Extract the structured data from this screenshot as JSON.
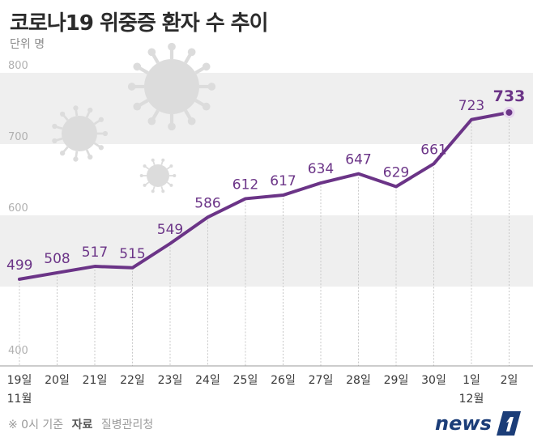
{
  "title": "코로나19 위중증 환자 수 추이",
  "unit_label": "단위 명",
  "source": {
    "note": "※ 0시 기준",
    "label": "자료",
    "org": "질병관리청"
  },
  "logo_text": "news",
  "colors": {
    "line": "#6b3487",
    "band": "#efefef",
    "text_axis": "#3a3a3a",
    "text_grey": "#b0b0b0",
    "virus": "#dcdcdc"
  },
  "chart_data": {
    "type": "line",
    "title": "코로나19 위중증 환자 수 추이",
    "ylabel": "단위 명",
    "ylim": [
      400,
      800
    ],
    "yticks": [
      400,
      600,
      700,
      800
    ],
    "categories": [
      "19일",
      "20일",
      "21일",
      "22일",
      "23일",
      "24일",
      "25일",
      "26일",
      "27일",
      "28일",
      "29일",
      "30일",
      "1일",
      "2일"
    ],
    "month_labels": [
      {
        "index": 0,
        "label": "11월"
      },
      {
        "index": 12,
        "label": "12월"
      }
    ],
    "values": [
      499,
      508,
      517,
      515,
      549,
      586,
      612,
      617,
      634,
      647,
      629,
      661,
      723,
      733
    ],
    "highlight_last": true,
    "grid": false
  }
}
